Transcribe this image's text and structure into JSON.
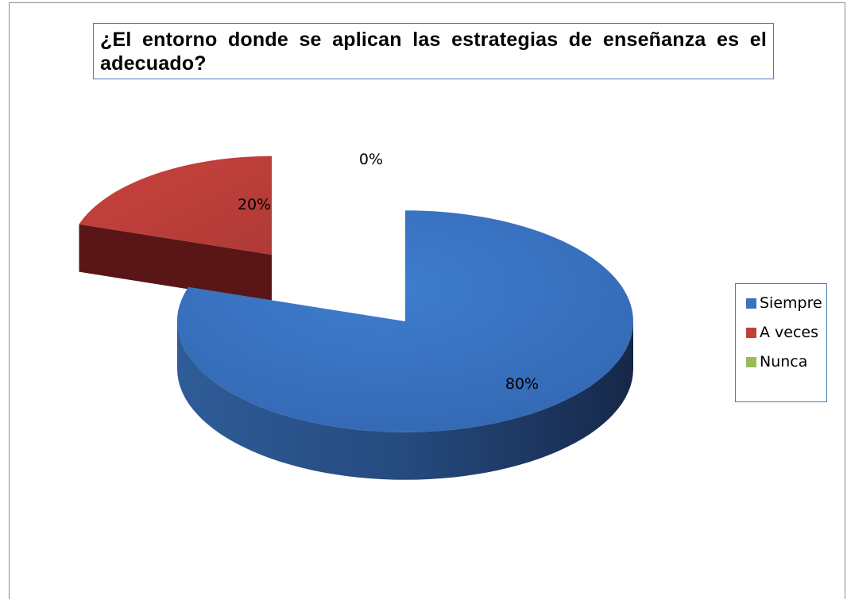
{
  "chart_data": {
    "type": "pie",
    "title": "¿El entorno donde se aplican las estrategias de enseñanza es el adecuado?",
    "categories": [
      "Siempre",
      "A veces",
      "Nunca"
    ],
    "values": [
      80,
      20,
      0
    ],
    "data_labels": [
      "80%",
      "20%",
      "0%"
    ],
    "colors": [
      "#3a72c0",
      "#c0403c",
      "#9bbb59"
    ],
    "legend_position": "right",
    "style": "3d-exploded"
  }
}
